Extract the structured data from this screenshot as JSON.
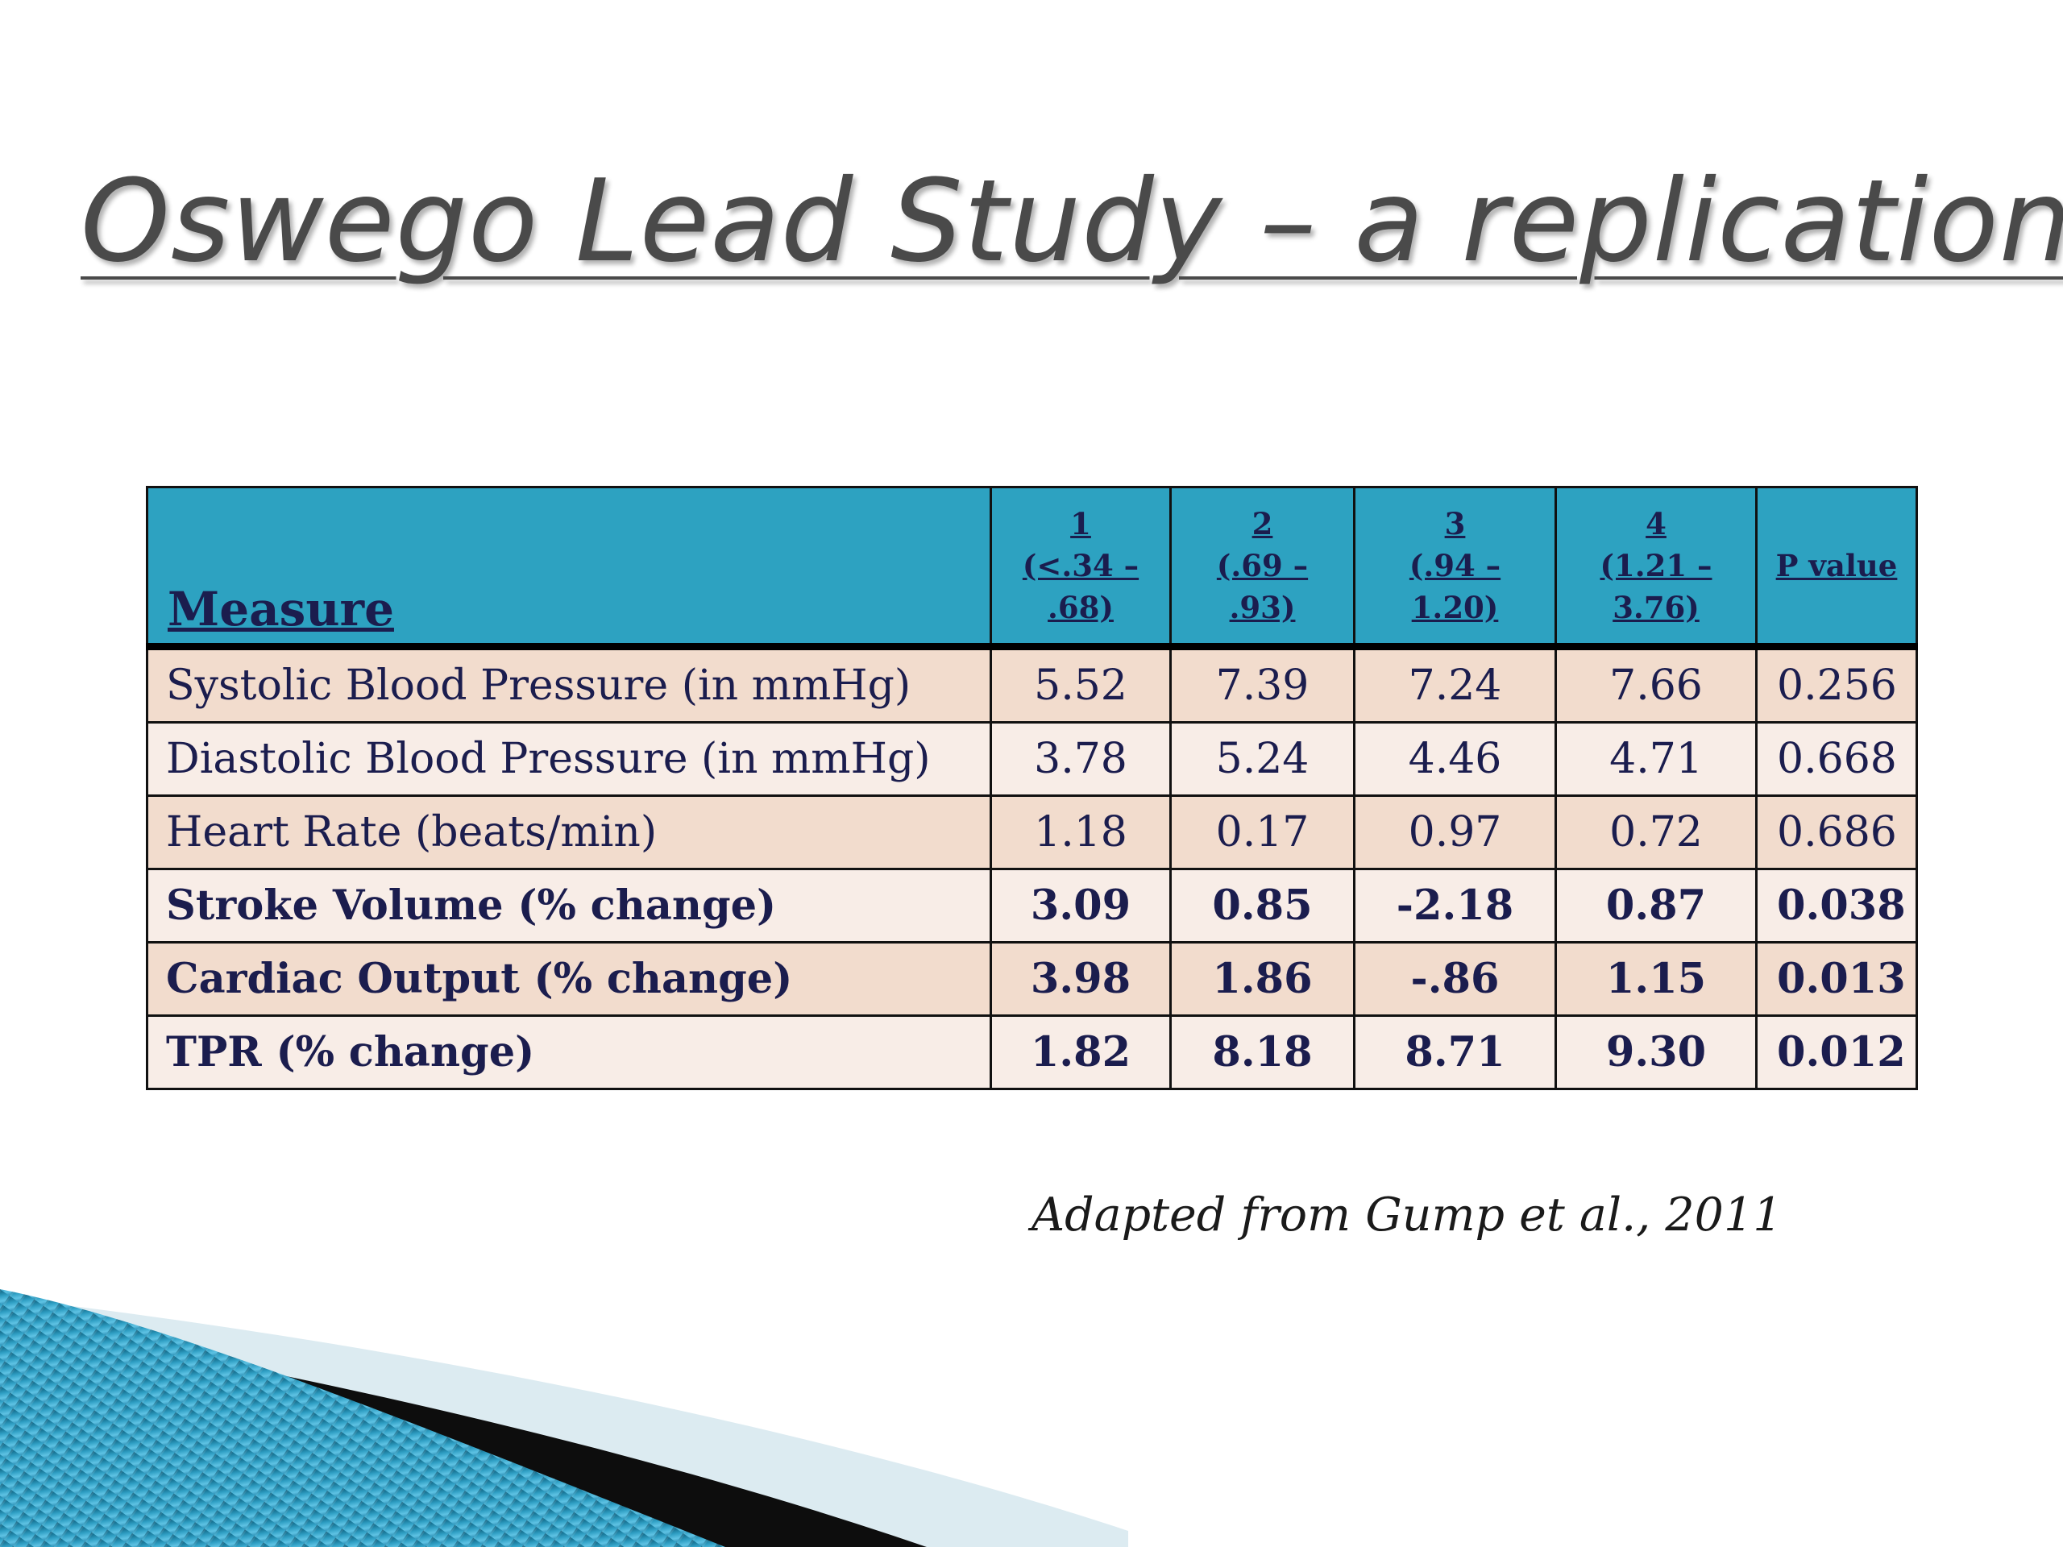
{
  "slide": {
    "title": "Oswego Lead Study – a replication!",
    "credit": "Adapted from Gump et al., 2011"
  },
  "table": {
    "headers": {
      "measure": "Measure",
      "q1_num": "1",
      "q1_l1": "(<.34 –",
      "q1_l2": ".68)",
      "q2_num": "2",
      "q2_l1": "(.69 –",
      "q2_l2": ".93)",
      "q3_num": "3",
      "q3_l1": "(.94 –",
      "q3_l2": "1.20)",
      "q4_num": "4",
      "q4_l1": "(1.21 –",
      "q4_l2": "3.76)",
      "pvalue": "P value"
    },
    "rows": [
      {
        "measure": "Systolic Blood Pressure (in mmHg)",
        "q1": "5.52",
        "q2": "7.39",
        "q3": "7.24",
        "q4": "7.66",
        "p": "0.256"
      },
      {
        "measure": "Diastolic Blood Pressure (in mmHg)",
        "q1": "3.78",
        "q2": "5.24",
        "q3": "4.46",
        "q4": "4.71",
        "p": "0.668"
      },
      {
        "measure": "Heart Rate (beats/min)",
        "q1": "1.18",
        "q2": "0.17",
        "q3": "0.97",
        "q4": "0.72",
        "p": "0.686"
      },
      {
        "measure": "Stroke Volume (% change)",
        "q1": "3.09",
        "q2": "0.85",
        "q3": "-2.18",
        "q4": "0.87",
        "p": "0.038"
      },
      {
        "measure": "Cardiac Output (% change)",
        "q1": "3.98",
        "q2": "1.86",
        "q3": "-.86",
        "q4": "1.15",
        "p": "0.013"
      },
      {
        "measure": "TPR (% change)",
        "q1": "1.82",
        "q2": "8.18",
        "q3": "8.71",
        "q4": "9.30",
        "p": "0.012"
      }
    ]
  },
  "colors": {
    "header_bg": "#2da2c1",
    "row_odd_bg": "#f2dccd",
    "row_even_bg": "#f8ede7",
    "text": "#1b1d4e",
    "title": "#4a4a4a"
  }
}
